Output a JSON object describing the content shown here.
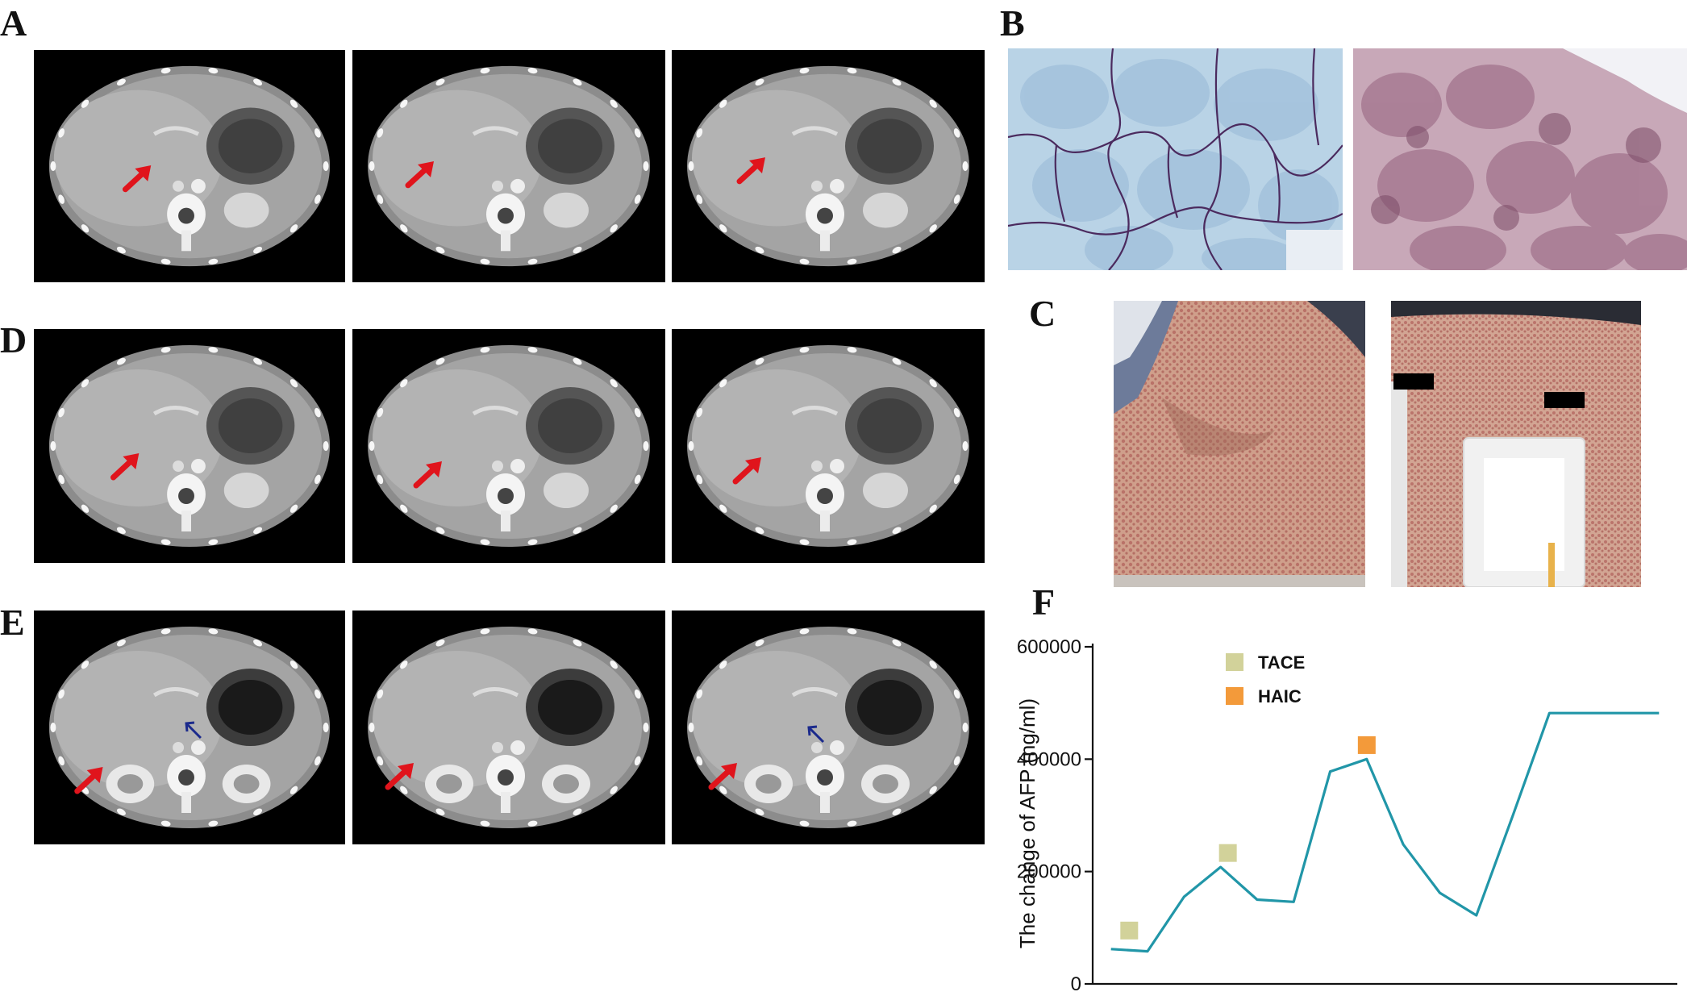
{
  "panels": {
    "A": "A",
    "B": "B",
    "C": "C",
    "D": "D",
    "E": "E",
    "F": "F"
  },
  "ct_rows": [
    {
      "id": "A",
      "arrows": [
        "red",
        "red",
        "red"
      ],
      "blue_arrows": [
        false,
        false,
        false
      ]
    },
    {
      "id": "D",
      "arrows": [
        "red",
        "red",
        "red"
      ],
      "blue_arrows": [
        false,
        false,
        false
      ]
    },
    {
      "id": "E",
      "arrows": [
        "red",
        "red",
        "red"
      ],
      "blue_arrows": [
        true,
        false,
        true
      ]
    }
  ],
  "colors": {
    "red_arrow": "#e0141c",
    "blue_arrow": "#1b2a8c",
    "line": "#2196a8",
    "tace": "#d2d29a",
    "haic": "#f39a3a"
  },
  "chart_data": {
    "type": "line",
    "ylabel": "The change of AFP (ng/ml)",
    "ylim": [
      0,
      600000
    ],
    "yticks": [
      0,
      200000,
      400000,
      600000
    ],
    "ytick_labels": [
      "0",
      "200000",
      "400000",
      "600000"
    ],
    "x": [
      0,
      1,
      2,
      3,
      4,
      5,
      6,
      7,
      8,
      9,
      10,
      11,
      12,
      13,
      14,
      15
    ],
    "values": [
      62000,
      58000,
      155000,
      208000,
      150000,
      146000,
      378000,
      400000,
      248000,
      162000,
      122000,
      300000,
      482000,
      482000,
      482000,
      482000
    ],
    "xlim": [
      -0.5,
      15.5
    ],
    "legend": [
      {
        "name": "TACE",
        "color": "#d2d29a"
      },
      {
        "name": "HAIC",
        "color": "#f39a3a"
      }
    ],
    "markers": [
      {
        "type": "TACE",
        "x": 0.5,
        "y": 95000
      },
      {
        "type": "TACE",
        "x": 3.2,
        "y": 233000
      },
      {
        "type": "HAIC",
        "x": 7.0,
        "y": 425000
      }
    ],
    "grid": false,
    "legend_position": "top-left"
  }
}
